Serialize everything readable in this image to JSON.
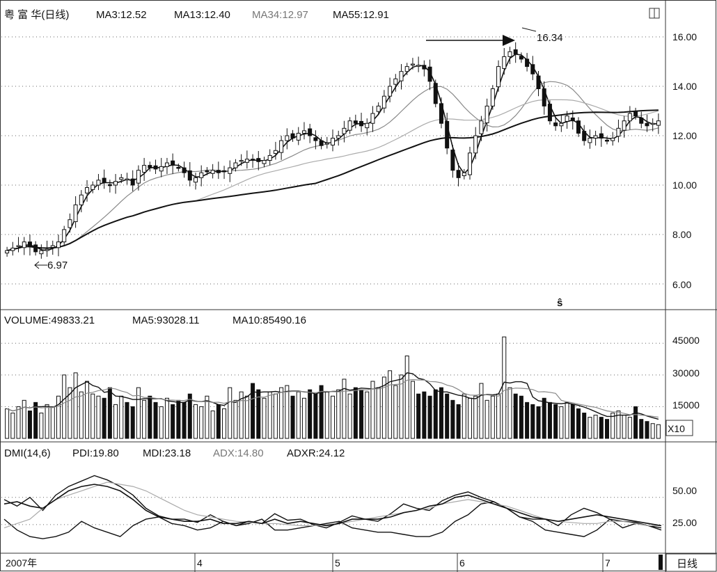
{
  "chart_data": [
    {
      "type": "candlestick",
      "header": {
        "stock": "粤 富 华(日线)",
        "ma3": "MA3:12.52",
        "ma13": "MA13:12.40",
        "ma34": "MA34:12.97",
        "ma55": "MA55:12.91"
      },
      "ylim": [
        5.0,
        17.0
      ],
      "y_ticks": [
        "16.00",
        "14.00",
        "12.00",
        "10.00",
        "8.00",
        "6.00"
      ],
      "annotations": {
        "high_label": "16.34",
        "low_label": "6.97",
        "marker": "ŝ"
      },
      "closes": [
        7.35,
        7.45,
        7.55,
        7.7,
        7.5,
        7.3,
        7.35,
        7.4,
        7.55,
        7.7,
        8.2,
        8.6,
        9.2,
        9.6,
        9.9,
        10.0,
        10.2,
        10.1,
        10.0,
        10.15,
        10.3,
        10.25,
        10.0,
        10.6,
        10.8,
        10.7,
        10.65,
        10.75,
        10.9,
        10.8,
        10.7,
        10.5,
        10.2,
        10.3,
        10.5,
        10.55,
        10.6,
        10.5,
        10.55,
        10.7,
        10.9,
        11.0,
        11.05,
        11.0,
        10.95,
        11.0,
        11.2,
        11.4,
        11.8,
        12.0,
        11.9,
        12.1,
        12.2,
        12.0,
        11.8,
        11.6,
        11.7,
        11.9,
        12.0,
        12.3,
        12.6,
        12.5,
        12.4,
        12.5,
        12.9,
        13.2,
        13.6,
        14.0,
        14.3,
        14.6,
        14.8,
        14.9,
        14.85,
        14.7,
        14.2,
        13.3,
        12.5,
        11.5,
        10.6,
        10.3,
        10.5,
        11.3,
        12.0,
        12.6,
        13.2,
        13.9,
        14.8,
        15.2,
        15.4,
        15.3,
        15.1,
        14.8,
        14.5,
        13.9,
        13.2,
        12.6,
        12.4,
        12.5,
        12.8,
        12.6,
        12.1,
        11.8,
        11.9,
        12.0,
        11.9,
        11.8,
        11.9,
        12.3,
        12.6,
        12.9,
        12.8,
        12.5,
        12.4,
        12.5,
        12.6
      ],
      "volume": {
        "header": {
          "volume": "VOLUME:49833.21",
          "ma5": "MA5:93028.11",
          "ma10": "MA10:85490.16"
        },
        "ylim": [
          0,
          52000
        ],
        "y_ticks": [
          "45000",
          "30000",
          "15000"
        ],
        "unit_label": "X10",
        "values": [
          14000,
          12000,
          15000,
          18000,
          13000,
          17000,
          12000,
          16000,
          15000,
          20000,
          30000,
          24000,
          31000,
          22000,
          27000,
          21000,
          20000,
          19000,
          24000,
          16000,
          20000,
          17000,
          15000,
          24000,
          18000,
          20000,
          17000,
          15000,
          19000,
          16000,
          18000,
          17000,
          21000,
          16000,
          15000,
          20000,
          13000,
          16000,
          14000,
          24000,
          18000,
          22000,
          20000,
          26000,
          23000,
          19000,
          22000,
          21000,
          24000,
          25000,
          20000,
          22000,
          19000,
          23000,
          21000,
          25000,
          22000,
          20000,
          23000,
          28000,
          21000,
          24000,
          23000,
          22000,
          27000,
          24000,
          29000,
          32000,
          25000,
          30000,
          39000,
          27000,
          21000,
          22000,
          20000,
          23000,
          24000,
          21000,
          18000,
          16000,
          21000,
          19000,
          20000,
          26000,
          18000,
          20000,
          21000,
          48000,
          24000,
          21000,
          20000,
          17000,
          16000,
          15000,
          19000,
          17000,
          16000,
          15000,
          17000,
          16000,
          14000,
          12000,
          10000,
          11000,
          10000,
          9000,
          12000,
          13000,
          11000,
          10000,
          15000,
          9000,
          8000,
          7000,
          6500
        ]
      }
    },
    {
      "type": "line",
      "header": {
        "dmi": "DMI(14,6)",
        "pdi": "PDI:19.80",
        "mdi": "MDI:23.18",
        "adx": "ADX:14.80",
        "adxr": "ADXR:24.12"
      },
      "ylim": [
        0,
        85
      ],
      "y_ticks": [
        "50.00",
        "25.00"
      ],
      "series": [
        {
          "values": [
            48,
            42,
            50,
            38,
            52,
            60,
            65,
            70,
            66,
            60,
            52,
            40,
            33,
            30,
            30,
            27,
            34,
            28,
            24,
            28,
            26,
            35,
            29,
            30,
            25,
            22,
            27,
            33,
            30,
            28,
            35,
            44,
            40,
            38,
            47,
            52,
            55,
            50,
            46,
            40,
            32,
            30,
            30,
            24,
            34,
            40,
            36,
            30,
            28,
            27,
            24,
            20
          ]
        },
        {
          "values": [
            30,
            20,
            14,
            12,
            14,
            18,
            28,
            22,
            18,
            14,
            24,
            30,
            32,
            26,
            24,
            20,
            22,
            28,
            24,
            26,
            30,
            20,
            20,
            22,
            24,
            26,
            28,
            22,
            20,
            18,
            18,
            16,
            14,
            14,
            18,
            28,
            34,
            44,
            46,
            40,
            32,
            28,
            20,
            18,
            16,
            14,
            20,
            30,
            22,
            26,
            24,
            22
          ]
        },
        {
          "values": [
            22,
            26,
            30,
            40,
            48,
            52,
            56,
            60,
            64,
            62,
            60,
            56,
            50,
            44,
            38,
            34,
            32,
            30,
            28,
            27,
            26,
            26,
            25,
            24,
            24,
            25,
            26,
            28,
            30,
            32,
            34,
            36,
            38,
            40,
            44,
            46,
            48,
            46,
            44,
            42,
            38,
            34,
            30,
            28,
            27,
            26,
            26,
            28,
            28,
            26,
            24,
            24
          ]
        },
        {
          "values": [
            44,
            46,
            42,
            40,
            48,
            56,
            60,
            62,
            60,
            56,
            48,
            38,
            32,
            30,
            28,
            28,
            30,
            26,
            26,
            28,
            26,
            30,
            26,
            28,
            26,
            24,
            26,
            30,
            30,
            30,
            32,
            36,
            38,
            42,
            44,
            50,
            52,
            48,
            44,
            40,
            36,
            32,
            30,
            28,
            30,
            32,
            34,
            32,
            30,
            28,
            26,
            24
          ]
        }
      ]
    }
  ],
  "x_axis": {
    "dates": [
      "2007年",
      "4",
      "5",
      "6",
      "7"
    ]
  },
  "footer": {
    "period_button": "日线"
  },
  "colors": {
    "line": "#111111",
    "line_gray": "#888888",
    "line_light": "#aaaaaa",
    "grid": "#666666",
    "background": "#ffffff"
  },
  "icons": {
    "corner": "maximize-square-icon"
  }
}
